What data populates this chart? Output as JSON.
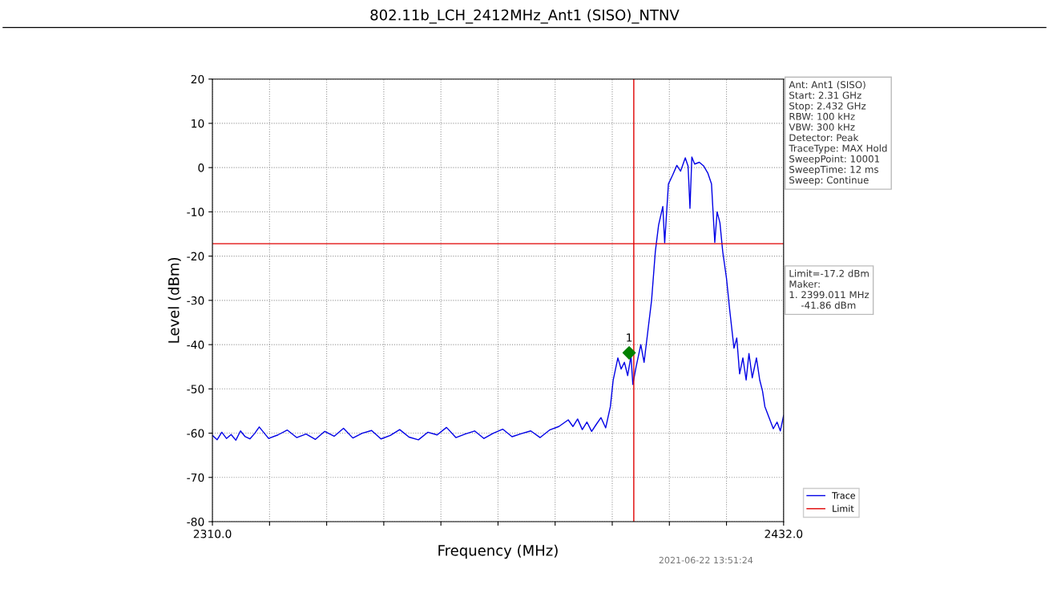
{
  "chart_data": {
    "type": "line",
    "title": "802.11b_LCH_2412MHz_Ant1 (SISO)_NTNV",
    "xlabel": "Frequency (MHz)",
    "ylabel": "Level (dBm)",
    "xlim": [
      2310,
      2432
    ],
    "ylim": [
      -80,
      20
    ],
    "xticks": [
      {
        "value": 2310,
        "label": "2310.0"
      },
      {
        "value": 2322.2,
        "label": null
      },
      {
        "value": 2334.4,
        "label": null
      },
      {
        "value": 2346.6,
        "label": null
      },
      {
        "value": 2358.8,
        "label": null
      },
      {
        "value": 2371,
        "label": null
      },
      {
        "value": 2383.2,
        "label": null
      },
      {
        "value": 2395.4,
        "label": null
      },
      {
        "value": 2407.6,
        "label": null
      },
      {
        "value": 2419.8,
        "label": null
      },
      {
        "value": 2432,
        "label": "2432.0"
      }
    ],
    "yticks": [
      -80,
      -70,
      -60,
      -50,
      -40,
      -30,
      -20,
      -10,
      0,
      10,
      20
    ],
    "grid": true,
    "legend": "bottom right",
    "series": [
      {
        "name": "Trace",
        "color": "#0000e6",
        "x": [
          2310,
          2311,
          2312,
          2313,
          2314,
          2315,
          2316,
          2317,
          2318,
          2319,
          2320,
          2322,
          2324,
          2326,
          2328,
          2330,
          2332,
          2334,
          2336,
          2338,
          2340,
          2342,
          2344,
          2346,
          2348,
          2350,
          2352,
          2354,
          2356,
          2358,
          2360,
          2362,
          2364,
          2366,
          2368,
          2370,
          2372,
          2374,
          2376,
          2378,
          2380,
          2382,
          2384,
          2386,
          2387,
          2388,
          2389,
          2390,
          2391,
          2392,
          2393,
          2394,
          2395,
          2395.6,
          2396.6,
          2397.3,
          2398,
          2398.7,
          2399.4,
          2399.8,
          2400.5,
          2401.5,
          2402.2,
          2403,
          2403.8,
          2404.6,
          2405.3,
          2406.2,
          2406.6,
          2407.4,
          2408.3,
          2409.2,
          2410,
          2411,
          2411.6,
          2412,
          2412.4,
          2413,
          2414,
          2414.9,
          2415.8,
          2416.6,
          2417.3,
          2417.8,
          2418.4,
          2419,
          2419.8,
          2420.5,
          2421.4,
          2422,
          2422.6,
          2423.3,
          2424,
          2424.6,
          2425.3,
          2426.2,
          2426.9,
          2427.5,
          2428,
          2428.9,
          2429.8,
          2430.6,
          2431.3,
          2432
        ],
        "values": [
          -60.5,
          -61.5,
          -59.8,
          -61.2,
          -60.3,
          -61.6,
          -59.5,
          -60.8,
          -61.3,
          -60.1,
          -58.6,
          -61.2,
          -60.4,
          -59.3,
          -61.0,
          -60.2,
          -61.4,
          -59.6,
          -60.7,
          -58.9,
          -61.1,
          -60.0,
          -59.4,
          -61.3,
          -60.5,
          -59.2,
          -60.9,
          -61.5,
          -59.8,
          -60.4,
          -58.7,
          -61.0,
          -60.2,
          -59.5,
          -61.2,
          -60.0,
          -59.1,
          -60.8,
          -60.1,
          -59.5,
          -61.0,
          -59.3,
          -58.5,
          -57.0,
          -58.5,
          -56.8,
          -59.2,
          -57.5,
          -59.6,
          -58.0,
          -56.5,
          -58.8,
          -54.0,
          -48.0,
          -43.0,
          -45.5,
          -44.0,
          -47.0,
          -42.5,
          -49.0,
          -45.0,
          -40.0,
          -44.0,
          -37.0,
          -30.0,
          -19.0,
          -13.0,
          -8.8,
          -17.0,
          -3.7,
          -1.7,
          0.5,
          -0.8,
          2.2,
          0.3,
          -9.2,
          2.4,
          0.8,
          1.2,
          0.4,
          -1.2,
          -3.7,
          -16.9,
          -10.0,
          -12.5,
          -19.0,
          -25.0,
          -32.3,
          -40.8,
          -38.5,
          -46.6,
          -43.0,
          -48.0,
          -42.0,
          -47.5,
          -43.0,
          -48.0,
          -50.5,
          -54.0,
          -56.5,
          -59.0,
          -57.5,
          -59.5,
          -56.0
        ]
      },
      {
        "type": "scatter",
        "color": "#008000",
        "marker": "diamond",
        "x": [
          2399.011
        ],
        "values": [
          -41.86
        ]
      }
    ],
    "ref_lines": [
      {
        "axis": "y",
        "value": -17.2,
        "label": "Limit",
        "color": "#e00000"
      },
      {
        "axis": "x",
        "value": 2400,
        "color": "#e00000"
      }
    ],
    "annotations": [
      {
        "text": "1",
        "x": 2399.011,
        "y": -41.86
      },
      "Ant: Ant1 (SISO)\nStart: 2.31 GHz\nStop: 2.432 GHz\nRBW: 100 kHz\nVBW: 300 kHz\nDetector: Peak\nTraceType: MAX Hold\nSweepPoint: 10001\nSweepTime: 12 ms\nSweep: Continue",
      "Limit=-17.2 dBm\nMaker:\n1. 2399.011 MHz\n    -41.86 dBm",
      "2021-06-22 13:51:24"
    ]
  }
}
